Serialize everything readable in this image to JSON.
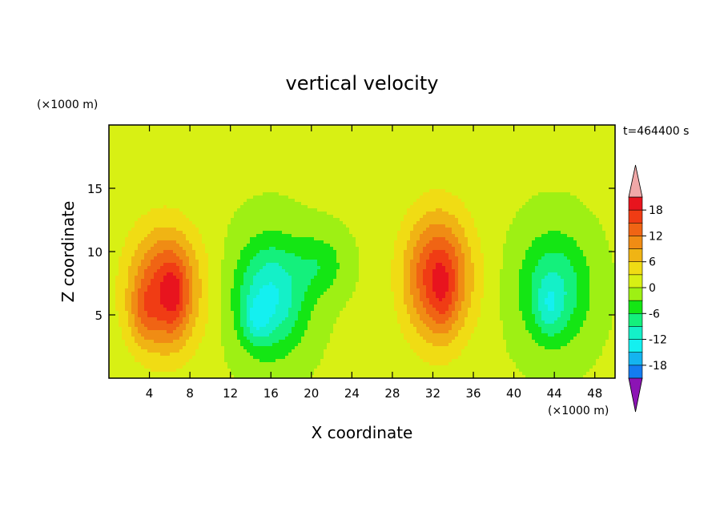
{
  "chart_data": {
    "type": "heatmap",
    "title": "vertical velocity",
    "xlabel": "X coordinate",
    "ylabel": "Z coordinate",
    "x_unit": "(×1000 m)",
    "y_unit": "(×1000 m)",
    "time_label": "t=464400 s",
    "xlim": [
      0,
      50
    ],
    "ylim": [
      0,
      20
    ],
    "x_ticks": [
      4,
      8,
      12,
      16,
      20,
      24,
      28,
      32,
      36,
      40,
      44,
      48
    ],
    "y_ticks": [
      5,
      10,
      15
    ],
    "colorbar": {
      "levels": [
        -21,
        -18,
        -15,
        -12,
        -9,
        -6,
        -3,
        0,
        3,
        6,
        9,
        12,
        15,
        18,
        21
      ],
      "tick_labels": [
        18,
        12,
        6,
        0,
        -6,
        -12,
        -18
      ],
      "colors": [
        "#f0a8a8",
        "#e8141e",
        "#f03c14",
        "#f06414",
        "#f08c14",
        "#f0b414",
        "#f0dc14",
        "#d8f014",
        "#9ef014",
        "#14e614",
        "#14f07c",
        "#14f0c8",
        "#14f0f0",
        "#14b4f0",
        "#147cf0",
        "#1450f0",
        "#1428e6",
        "#1414c8",
        "#14149a",
        "#4a1494",
        "#8c14b4"
      ],
      "over_color": "#f0a8a8",
      "under_color": "#8c14b4"
    },
    "field": {
      "background_value": 0.5,
      "cells": [
        {
          "x": 5.5,
          "z": 7.0,
          "sx": 3.5,
          "sz": 4.8,
          "amp": 16
        },
        {
          "x": 3.5,
          "z": 5.0,
          "sx": 1.5,
          "sz": 2.5,
          "amp": 4
        },
        {
          "x": 6.5,
          "z": 6.5,
          "sx": 1.2,
          "sz": 3.0,
          "amp": 5
        },
        {
          "x": 16.0,
          "z": 6.5,
          "sx": 3.5,
          "sz": 4.5,
          "amp": -13
        },
        {
          "x": 14.5,
          "z": 4.5,
          "sx": 1.3,
          "sz": 1.8,
          "amp": -5
        },
        {
          "x": 21.0,
          "z": 9.0,
          "sx": 2.5,
          "sz": 2.5,
          "amp": -5
        },
        {
          "x": 32.5,
          "z": 8.0,
          "sx": 3.3,
          "sz": 5.0,
          "amp": 17
        },
        {
          "x": 33.0,
          "z": 6.5,
          "sx": 1.2,
          "sz": 3.0,
          "amp": 3
        },
        {
          "x": 44.0,
          "z": 7.0,
          "sx": 3.5,
          "sz": 4.5,
          "amp": -10
        },
        {
          "x": 43.5,
          "z": 5.5,
          "sx": 1.2,
          "sz": 2.0,
          "amp": -4
        }
      ]
    }
  }
}
